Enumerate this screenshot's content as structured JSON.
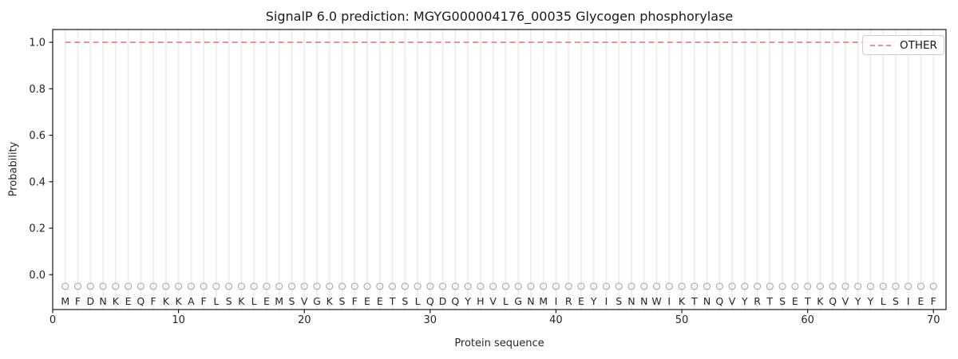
{
  "chart_data": {
    "type": "line",
    "title": "SignalP 6.0 prediction: MGYG000004176_00035 Glycogen phosphorylase",
    "xlabel": "Protein sequence",
    "ylabel": "Probability",
    "xlim": [
      0,
      71
    ],
    "ylim": [
      -0.15,
      1.055
    ],
    "x_ticks": [
      0,
      10,
      20,
      30,
      40,
      50,
      60,
      70
    ],
    "y_ticks": [
      0.0,
      0.2,
      0.4,
      0.6,
      0.8,
      1.0
    ],
    "grid": "light vertical gridline at every residue position 1-70",
    "sequence": "MFDNKEQFKKAFLSKLEMSVGKSFEETSLQDQYHVLGNMIREYISNNWIKTNQVYRTSETKQVYYLSIEF",
    "series": [
      {
        "name": "OTHER",
        "linestyle": "dashed",
        "color": "#f08080",
        "x_start": 1,
        "values": [
          1,
          1,
          1,
          1,
          1,
          1,
          1,
          1,
          1,
          1,
          1,
          1,
          1,
          1,
          1,
          1,
          1,
          1,
          1,
          1,
          1,
          1,
          1,
          1,
          1,
          1,
          1,
          1,
          1,
          1,
          1,
          1,
          1,
          1,
          1,
          1,
          1,
          1,
          1,
          1,
          1,
          1,
          1,
          1,
          1,
          1,
          1,
          1,
          1,
          1,
          1,
          1,
          1,
          1,
          1,
          1,
          1,
          1,
          1,
          1,
          1,
          1,
          1,
          1,
          1,
          1,
          1,
          1,
          1,
          1
        ]
      }
    ],
    "residue_markers": {
      "shape": "open-circle",
      "y": -0.05,
      "color": "#a6a6a6"
    },
    "legend": {
      "position": "upper right",
      "entries": [
        {
          "label": "OTHER",
          "color": "#f08080",
          "linestyle": "dashed"
        }
      ]
    }
  },
  "colors": {
    "other_line": "#f08080",
    "grid": "#efefef",
    "marker": "#a6a6a6",
    "text": "#262626",
    "spine": "#1a1a1a",
    "legend_border": "#cccccc",
    "background": "#ffffff"
  }
}
